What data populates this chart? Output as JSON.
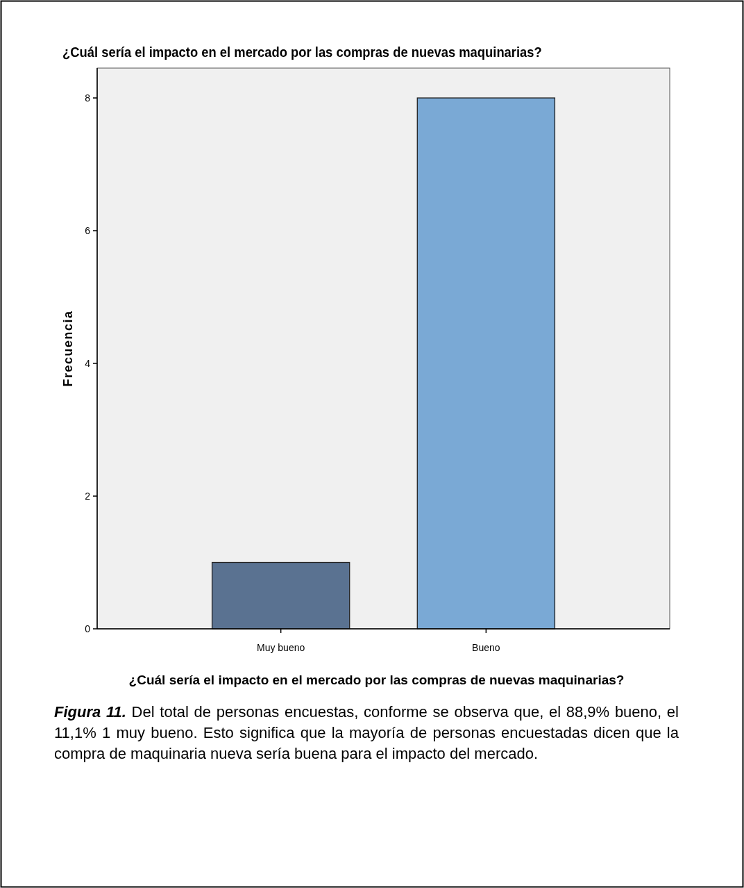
{
  "chart_data": {
    "type": "bar",
    "title": "¿Cuál sería el impacto en el mercado por las compras de nuevas maquinarias?",
    "xlabel": "¿Cuál sería el impacto en el mercado por las compras de nuevas maquinarias?",
    "ylabel": "Frecuencia",
    "categories": [
      "Muy bueno",
      "Bueno"
    ],
    "values": [
      1,
      8
    ],
    "colors": [
      "#5a7291",
      "#7aa9d5"
    ],
    "ylim": [
      0,
      8.45
    ],
    "yticks": [
      0,
      2,
      4,
      6,
      8
    ],
    "annotations": [
      "Figura 11. Del total de personas encuestas, conforme se observa que, el 88,9% bueno, el 11,1% 1 muy bueno. Esto significa que la mayoría de personas encuestadas dicen que la compra de maquinaria nueva sería buena para el impacto del mercado."
    ]
  }
}
